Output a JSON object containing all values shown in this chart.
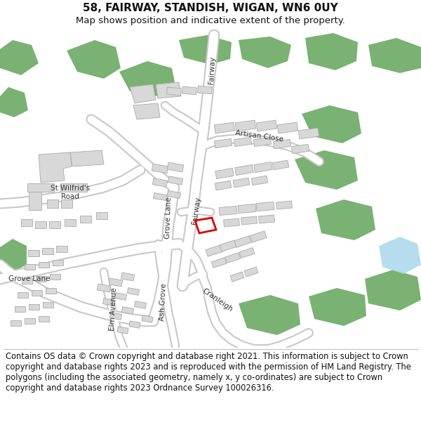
{
  "title_line1": "58, FAIRWAY, STANDISH, WIGAN, WN6 0UY",
  "title_line2": "Map shows position and indicative extent of the property.",
  "footer_text": "Contains OS data © Crown copyright and database right 2021. This information is subject to Crown copyright and database rights 2023 and is reproduced with the permission of HM Land Registry. The polygons (including the associated geometry, namely x, y co-ordinates) are subject to Crown copyright and database rights 2023 Ordnance Survey 100026316.",
  "bg_color": "#ffffff",
  "map_bg": "#f0f0f0",
  "road_color": "#ffffff",
  "road_outline": "#c8c8c8",
  "building_color": "#d8d8d8",
  "building_outline": "#aaaaaa",
  "green_color": "#6aaa64",
  "water_color": "#a8d8ea",
  "property_color": "#dd0000",
  "title_fontsize": 11,
  "subtitle_fontsize": 9.5,
  "footer_fontsize": 8.3
}
